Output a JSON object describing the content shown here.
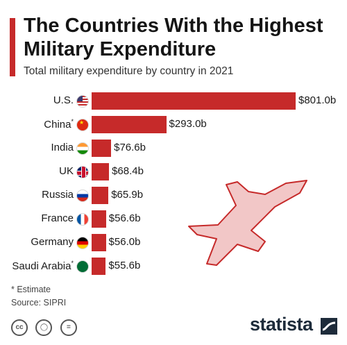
{
  "header": {
    "title": "The Countries With the Highest Military Expenditure",
    "subtitle": "Total military expenditure by country in 2021"
  },
  "colors": {
    "accent": "#c62a2a",
    "bar": "#c62a2a",
    "jet_fill": "#f2c7c7"
  },
  "chart_data": {
    "type": "bar",
    "orientation": "horizontal",
    "title": "The Countries With the Highest Military Expenditure",
    "subtitle": "Total military expenditure by country in 2021",
    "categories": [
      "U.S.",
      "China",
      "India",
      "UK",
      "Russia",
      "France",
      "Germany",
      "Saudi Arabia"
    ],
    "estimate_flags": [
      false,
      true,
      false,
      false,
      false,
      false,
      false,
      true
    ],
    "values": [
      801.0,
      293.0,
      76.6,
      68.4,
      65.9,
      56.6,
      56.0,
      55.6
    ],
    "value_labels": [
      "$801.0b",
      "$293.0b",
      "$76.6b",
      "$68.4b",
      "$65.9b",
      "$56.6b",
      "$56.0b",
      "$55.6b"
    ],
    "flag_icons": [
      "us-flag-icon",
      "china-flag-icon",
      "india-flag-icon",
      "uk-flag-icon",
      "russia-flag-icon",
      "france-flag-icon",
      "germany-flag-icon",
      "saudi-arabia-flag-icon"
    ],
    "unit": "billion USD",
    "xlim": [
      0,
      801.0
    ],
    "grid": false,
    "legend": "none"
  },
  "footer": {
    "note": "* Estimate",
    "source": "Source: SIPRI",
    "brand": "statista",
    "license_icons": [
      "creative-commons-icon",
      "attribution-icon",
      "no-derivatives-icon"
    ]
  }
}
